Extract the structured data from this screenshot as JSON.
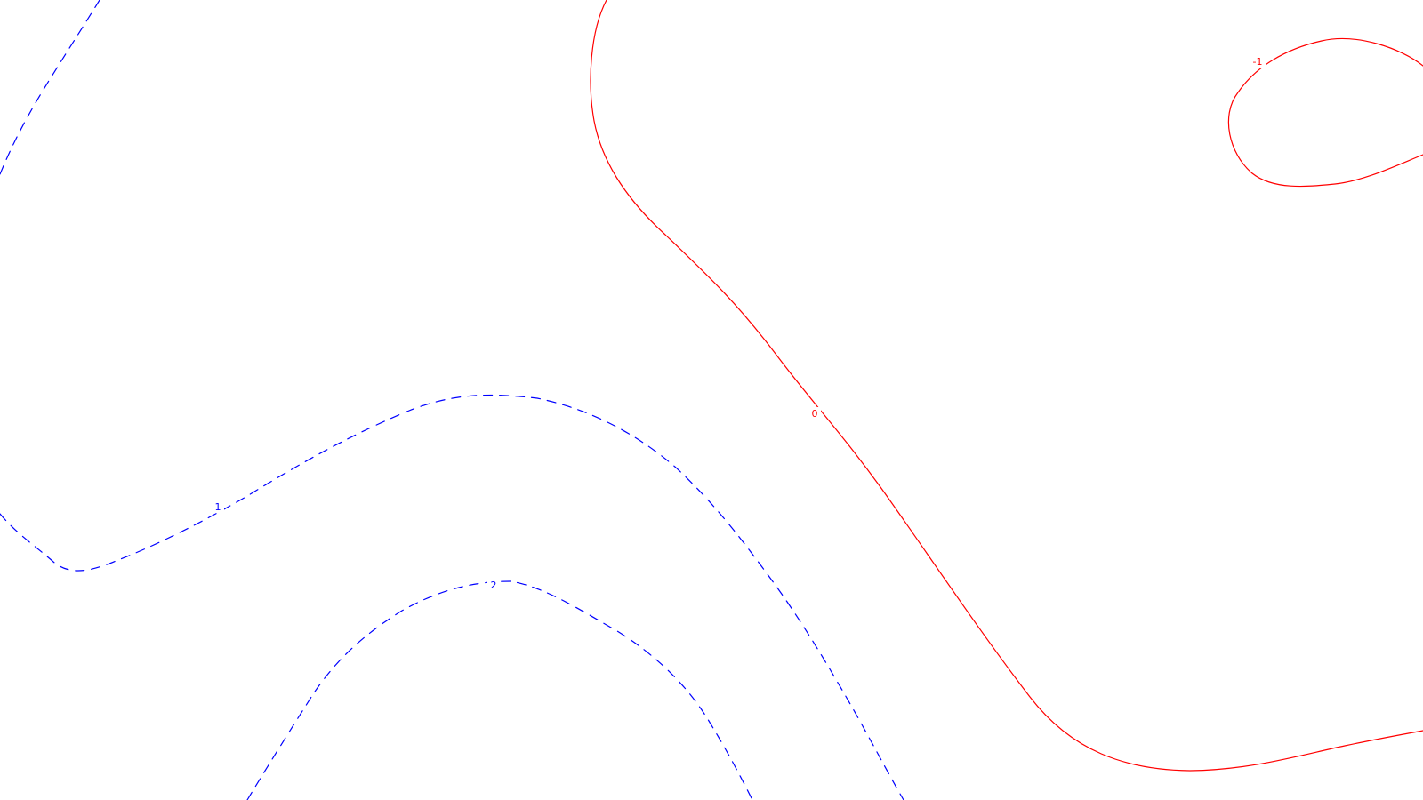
{
  "map": {
    "colors": {
      "negative_or_zero": "#ff0000",
      "positive": "#0000ff",
      "background": "#ffffff"
    },
    "contours": [
      {
        "id": "contour-zero",
        "label": "0",
        "color": "#ff0000",
        "style": "solid"
      },
      {
        "id": "contour-minus-one",
        "label": "-1",
        "color": "#ff0000",
        "style": "solid"
      },
      {
        "id": "contour-one-left",
        "label": "",
        "color": "#0000ff",
        "style": "dashed"
      },
      {
        "id": "contour-one-lower",
        "label": "1",
        "color": "#0000ff",
        "style": "dashed"
      },
      {
        "id": "contour-two",
        "label": "2",
        "color": "#0000ff",
        "style": "dashed"
      }
    ]
  }
}
